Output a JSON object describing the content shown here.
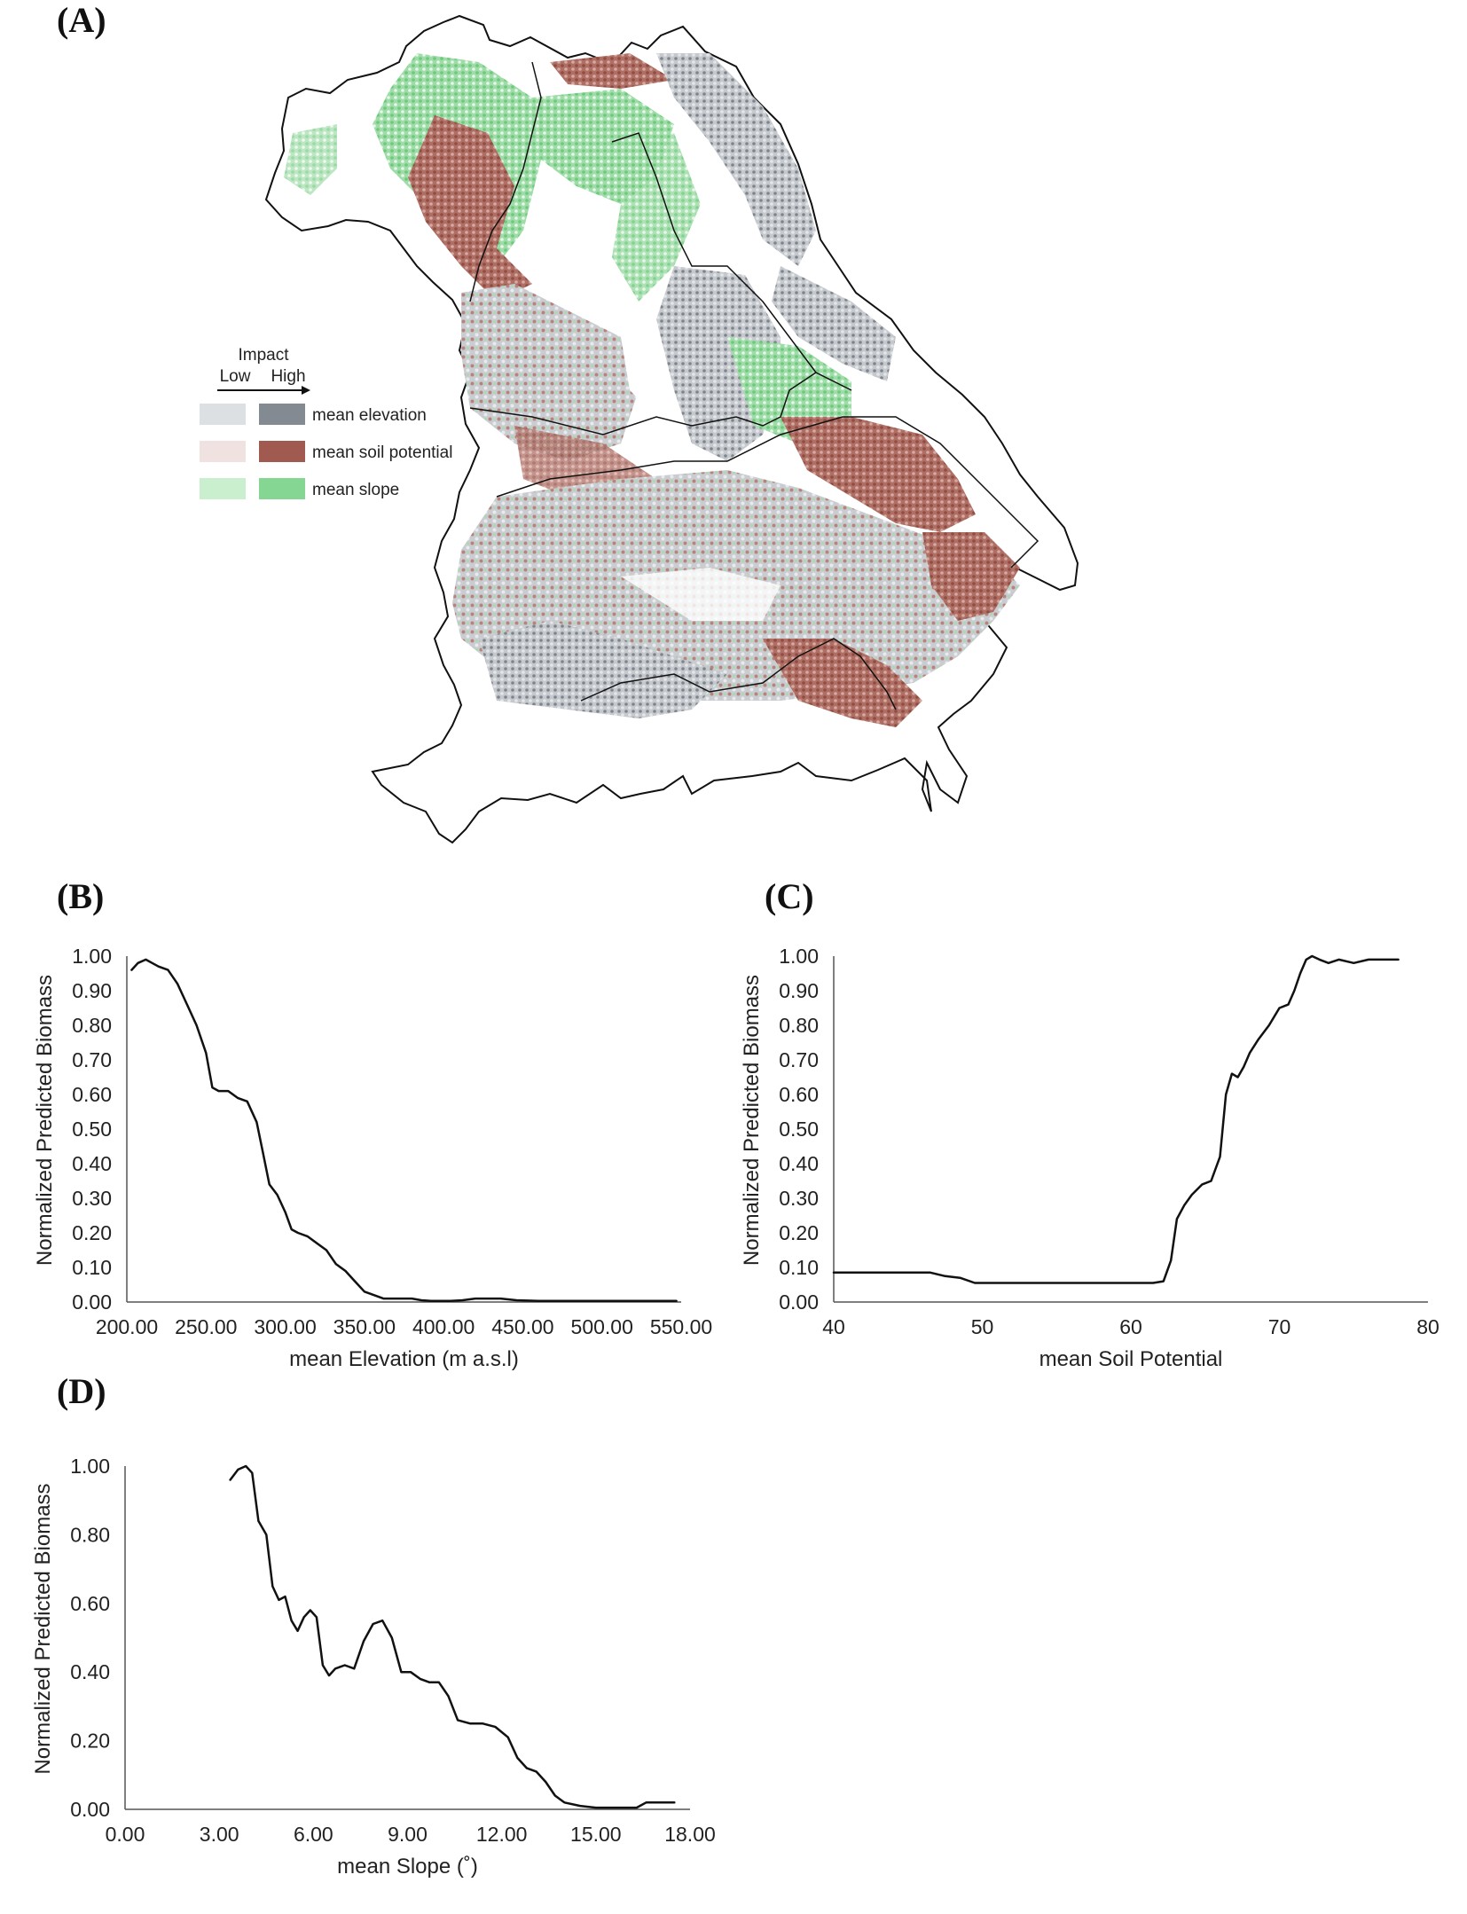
{
  "panels": {
    "a": "(A)",
    "b": "(B)",
    "c": "(C)",
    "d": "(D)"
  },
  "map": {
    "legend": {
      "title": "Impact",
      "low": "Low",
      "high": "High",
      "items": [
        {
          "label": "mean elevation",
          "low_color": "#dde0e3",
          "high_color": "#848a92"
        },
        {
          "label": "mean soil potential",
          "low_color": "#f0e2e0",
          "high_color": "#a05a4f"
        },
        {
          "label": "mean slope",
          "low_color": "#c9efcf",
          "high_color": "#86d693"
        }
      ]
    }
  },
  "chart_data": [
    {
      "id": "b",
      "type": "line",
      "xlabel": "mean Elevation (m a.s.l)",
      "ylabel": "Normalized Predicted Biomass",
      "xlim": [
        200,
        550
      ],
      "ylim": [
        0,
        1
      ],
      "x_ticks": [
        "200.00",
        "250.00",
        "300.00",
        "350.00",
        "400.00",
        "450.00",
        "500.00",
        "550.00"
      ],
      "y_ticks": [
        "0.00",
        "0.10",
        "0.20",
        "0.30",
        "0.40",
        "0.50",
        "0.60",
        "0.70",
        "0.80",
        "0.90",
        "1.00"
      ],
      "grid": false,
      "series": [
        {
          "x": [
            203,
            207,
            212,
            216,
            220,
            226,
            232,
            238,
            244,
            250,
            254,
            258,
            264,
            270,
            276,
            282,
            286,
            290,
            295,
            300,
            304,
            308,
            314,
            320,
            326,
            332,
            338,
            344,
            350,
            356,
            362,
            368,
            374,
            380,
            386,
            392,
            398,
            404,
            412,
            420,
            428,
            436,
            446,
            460,
            480,
            500,
            520,
            540,
            547
          ],
          "y": [
            0.96,
            0.98,
            0.99,
            0.98,
            0.97,
            0.96,
            0.92,
            0.86,
            0.8,
            0.72,
            0.62,
            0.61,
            0.61,
            0.59,
            0.58,
            0.52,
            0.43,
            0.34,
            0.31,
            0.26,
            0.21,
            0.2,
            0.19,
            0.17,
            0.15,
            0.11,
            0.09,
            0.06,
            0.03,
            0.02,
            0.01,
            0.01,
            0.01,
            0.01,
            0.005,
            0.003,
            0.003,
            0.003,
            0.005,
            0.01,
            0.01,
            0.01,
            0.005,
            0.003,
            0.003,
            0.003,
            0.003,
            0.003,
            0.003
          ]
        }
      ]
    },
    {
      "id": "c",
      "type": "line",
      "xlabel": "mean Soil Potential",
      "ylabel": "Normalized Predicted Biomass",
      "xlim": [
        40,
        80
      ],
      "ylim": [
        0,
        1
      ],
      "x_ticks": [
        "40",
        "50",
        "60",
        "70",
        "80"
      ],
      "y_ticks": [
        "0.00",
        "0.10",
        "0.20",
        "0.30",
        "0.40",
        "0.50",
        "0.60",
        "0.70",
        "0.80",
        "0.90",
        "1.00"
      ],
      "grid": false,
      "series": [
        {
          "x": [
            40,
            44,
            46.5,
            47.5,
            48.5,
            49.5,
            52,
            56,
            60,
            61.5,
            62.2,
            62.7,
            63.1,
            63.6,
            64.1,
            64.8,
            65.4,
            66.0,
            66.4,
            66.8,
            67.2,
            67.6,
            68.0,
            68.6,
            69.3,
            70.0,
            70.6,
            71.0,
            71.4,
            71.8,
            72.2,
            72.7,
            73.3,
            74.0,
            75.0,
            76.0,
            77.0,
            78.0
          ],
          "y": [
            0.085,
            0.085,
            0.085,
            0.075,
            0.07,
            0.055,
            0.055,
            0.055,
            0.055,
            0.055,
            0.06,
            0.12,
            0.24,
            0.28,
            0.31,
            0.34,
            0.35,
            0.42,
            0.6,
            0.66,
            0.65,
            0.68,
            0.72,
            0.76,
            0.8,
            0.85,
            0.86,
            0.9,
            0.95,
            0.99,
            1.0,
            0.99,
            0.98,
            0.99,
            0.98,
            0.99,
            0.99,
            0.99
          ]
        }
      ]
    },
    {
      "id": "d",
      "type": "line",
      "xlabel": "mean Slope (˚)",
      "ylabel": "Normalized Predicted Biomass",
      "xlim": [
        0,
        18
      ],
      "ylim": [
        0,
        1
      ],
      "x_ticks": [
        "0.00",
        "3.00",
        "6.00",
        "9.00",
        "12.00",
        "15.00",
        "18.00"
      ],
      "y_ticks": [
        "0.00",
        "0.20",
        "0.40",
        "0.60",
        "0.80",
        "1.00"
      ],
      "grid": false,
      "series": [
        {
          "x": [
            3.35,
            3.6,
            3.85,
            4.05,
            4.25,
            4.5,
            4.7,
            4.9,
            5.1,
            5.3,
            5.5,
            5.7,
            5.9,
            6.1,
            6.3,
            6.5,
            6.7,
            7.0,
            7.3,
            7.6,
            7.9,
            8.2,
            8.5,
            8.8,
            9.1,
            9.4,
            9.7,
            10.0,
            10.3,
            10.6,
            11.0,
            11.4,
            11.8,
            12.2,
            12.5,
            12.8,
            13.1,
            13.4,
            13.7,
            14.0,
            14.5,
            15.0,
            15.5,
            16.0,
            16.3,
            16.6,
            17.0,
            17.5
          ],
          "y": [
            0.96,
            0.99,
            1.0,
            0.98,
            0.84,
            0.8,
            0.65,
            0.61,
            0.62,
            0.55,
            0.52,
            0.56,
            0.58,
            0.56,
            0.42,
            0.39,
            0.41,
            0.42,
            0.41,
            0.49,
            0.54,
            0.55,
            0.5,
            0.4,
            0.4,
            0.38,
            0.37,
            0.37,
            0.33,
            0.26,
            0.25,
            0.25,
            0.24,
            0.21,
            0.15,
            0.12,
            0.11,
            0.08,
            0.04,
            0.02,
            0.01,
            0.005,
            0.005,
            0.005,
            0.005,
            0.02,
            0.02,
            0.02
          ]
        }
      ]
    }
  ]
}
